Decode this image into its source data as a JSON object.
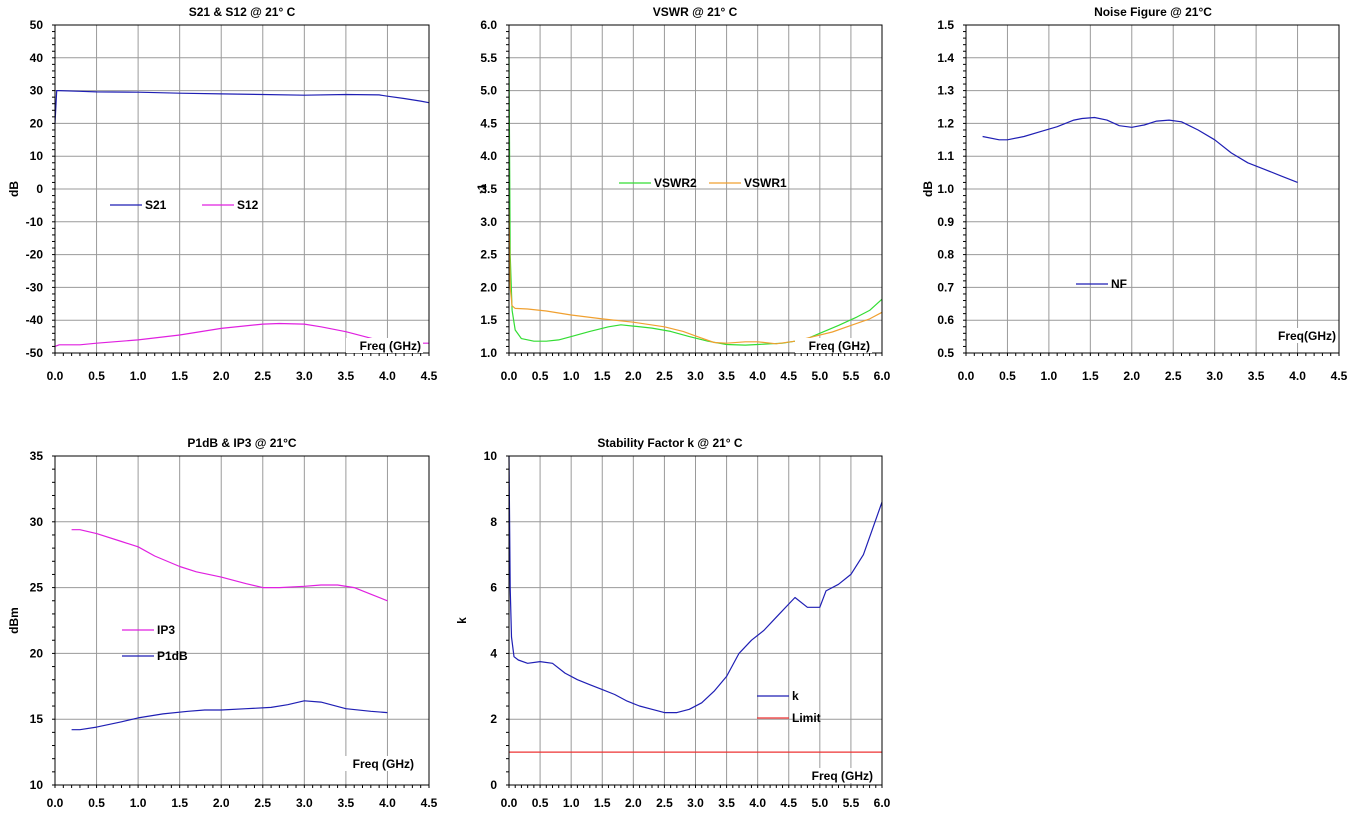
{
  "chart_data": [
    {
      "id": "s21s12",
      "type": "line",
      "title": "S21 & S12 @ 21° C",
      "xlabel": "Freq (GHz)",
      "ylabel": "dB",
      "xlim": [
        0,
        4.5
      ],
      "ylim": [
        -50,
        50
      ],
      "xticks": [
        0,
        0.5,
        1,
        1.5,
        2,
        2.5,
        3,
        3.5,
        4,
        4.5
      ],
      "xtick_labels": [
        "0.0",
        "0.5",
        "1.0",
        "1.5",
        "2.0",
        "2.5",
        "3.0",
        "3.5",
        "4.0",
        "4.5"
      ],
      "yticks": [
        -50,
        -40,
        -30,
        -20,
        -10,
        0,
        10,
        20,
        30,
        40,
        50
      ],
      "ytick_labels": [
        "-50",
        "-40",
        "-30",
        "-20",
        "-10",
        "0",
        "10",
        "20",
        "30",
        "40",
        "50"
      ],
      "grid": true,
      "legend": "middle",
      "series": [
        {
          "name": "S21",
          "color": "#1f1fb4",
          "x": [
            0.0,
            0.02,
            0.05,
            0.3,
            0.5,
            1.0,
            1.5,
            2.0,
            2.5,
            3.0,
            3.5,
            3.9,
            4.0,
            4.2,
            4.4,
            4.5
          ],
          "y": [
            20,
            30,
            30,
            29.8,
            29.6,
            29.5,
            29.2,
            29.0,
            28.8,
            28.6,
            28.8,
            28.7,
            28.3,
            27.6,
            26.8,
            26.3
          ]
        },
        {
          "name": "S12",
          "color": "#e020e0",
          "x": [
            0.0,
            0.05,
            0.3,
            0.5,
            1.0,
            1.5,
            2.0,
            2.5,
            2.7,
            3.0,
            3.2,
            3.5,
            3.8,
            4.0,
            4.3,
            4.5
          ],
          "y": [
            -48,
            -47.5,
            -47.5,
            -47,
            -46,
            -44.5,
            -42.5,
            -41.2,
            -41,
            -41.2,
            -42,
            -43.5,
            -45.5,
            -46.8,
            -47,
            -47
          ]
        }
      ],
      "annotation": "Freq (GHz)"
    },
    {
      "id": "vswr",
      "type": "line",
      "title": "VSWR @ 21° C",
      "xlabel": "Freq (GHz)",
      "ylabel": ":1",
      "xlim": [
        0,
        6
      ],
      "ylim": [
        1,
        6
      ],
      "xticks": [
        0,
        0.5,
        1,
        1.5,
        2,
        2.5,
        3,
        3.5,
        4,
        4.5,
        5,
        5.5,
        6
      ],
      "xtick_labels": [
        "0.0",
        "0.5",
        "1.0",
        "1.5",
        "2.0",
        "2.5",
        "3.0",
        "3.5",
        "4.0",
        "4.5",
        "5.0",
        "5.5",
        "6.0"
      ],
      "yticks": [
        1,
        1.5,
        2,
        2.5,
        3,
        3.5,
        4,
        4.5,
        5,
        5.5,
        6
      ],
      "ytick_labels": [
        "1.0",
        "1.5",
        "2.0",
        "2.5",
        "3.0",
        "3.5",
        "4.0",
        "4.5",
        "5.0",
        "5.5",
        "6.0"
      ],
      "grid": true,
      "legend": "middle-right",
      "series": [
        {
          "name": "VSWR2",
          "color": "#33dd33",
          "x": [
            0.0,
            0.02,
            0.05,
            0.1,
            0.2,
            0.4,
            0.6,
            0.8,
            1.0,
            1.3,
            1.6,
            1.8,
            2.0,
            2.3,
            2.6,
            2.9,
            3.2,
            3.5,
            3.8,
            4.0,
            4.2,
            4.4,
            4.6,
            4.8,
            5.0,
            5.3,
            5.6,
            5.8,
            6.0
          ],
          "y": [
            5.5,
            2.5,
            1.65,
            1.35,
            1.22,
            1.18,
            1.18,
            1.2,
            1.25,
            1.33,
            1.4,
            1.43,
            1.41,
            1.38,
            1.33,
            1.25,
            1.18,
            1.13,
            1.12,
            1.13,
            1.14,
            1.15,
            1.18,
            1.22,
            1.3,
            1.42,
            1.55,
            1.65,
            1.82
          ]
        },
        {
          "name": "VSWR1",
          "color": "#f0a030",
          "x": [
            0.0,
            0.02,
            0.05,
            0.1,
            0.3,
            0.6,
            1.0,
            1.5,
            2.0,
            2.5,
            2.8,
            3.0,
            3.3,
            3.5,
            3.8,
            4.0,
            4.3,
            4.6,
            4.9,
            5.2,
            5.5,
            5.8,
            6.0
          ],
          "y": [
            3.2,
            2.0,
            1.72,
            1.68,
            1.67,
            1.64,
            1.58,
            1.52,
            1.47,
            1.4,
            1.33,
            1.26,
            1.16,
            1.15,
            1.17,
            1.17,
            1.14,
            1.18,
            1.25,
            1.32,
            1.42,
            1.52,
            1.62
          ]
        }
      ],
      "annotation": "Freq (GHz)"
    },
    {
      "id": "nf",
      "type": "line",
      "title": "Noise Figure @ 21°C",
      "xlabel": "Freq(GHz)",
      "ylabel": "dB",
      "xlim": [
        0,
        4.5
      ],
      "ylim": [
        0.5,
        1.5
      ],
      "xticks": [
        0,
        0.5,
        1,
        1.5,
        2,
        2.5,
        3,
        3.5,
        4,
        4.5
      ],
      "xtick_labels": [
        "0.0",
        "0.5",
        "1.0",
        "1.5",
        "2.0",
        "2.5",
        "3.0",
        "3.5",
        "4.0",
        "4.5"
      ],
      "yticks": [
        0.5,
        0.6,
        0.7,
        0.8,
        0.9,
        1.0,
        1.1,
        1.2,
        1.3,
        1.4,
        1.5
      ],
      "ytick_labels": [
        "0.5",
        "0.6",
        "0.7",
        "0.8",
        "0.9",
        "1.0",
        "1.1",
        "1.2",
        "1.3",
        "1.4",
        "1.5"
      ],
      "grid": true,
      "legend": "lower-middle",
      "series": [
        {
          "name": "NF",
          "color": "#1f1fb4",
          "x": [
            0.2,
            0.4,
            0.5,
            0.7,
            0.9,
            1.1,
            1.3,
            1.4,
            1.55,
            1.7,
            1.85,
            2.0,
            2.15,
            2.3,
            2.45,
            2.6,
            2.8,
            3.0,
            3.2,
            3.4,
            3.6,
            3.8,
            4.0
          ],
          "y": [
            1.16,
            1.15,
            1.15,
            1.16,
            1.175,
            1.19,
            1.21,
            1.215,
            1.218,
            1.21,
            1.193,
            1.188,
            1.195,
            1.207,
            1.21,
            1.205,
            1.18,
            1.15,
            1.11,
            1.08,
            1.06,
            1.04,
            1.02
          ]
        }
      ],
      "annotation": "Freq(GHz)"
    },
    {
      "id": "p1dbip3",
      "type": "line",
      "title": "P1dB & IP3 @ 21°C",
      "xlabel": "Freq (GHz)",
      "ylabel": "dBm",
      "xlim": [
        0,
        4.5
      ],
      "ylim": [
        10,
        35
      ],
      "xticks": [
        0,
        0.5,
        1,
        1.5,
        2,
        2.5,
        3,
        3.5,
        4,
        4.5
      ],
      "xtick_labels": [
        "0.0",
        "0.5",
        "1.0",
        "1.5",
        "2.0",
        "2.5",
        "3.0",
        "3.5",
        "4.0",
        "4.5"
      ],
      "yticks": [
        10,
        15,
        20,
        25,
        30,
        35
      ],
      "ytick_labels": [
        "10",
        "15",
        "20",
        "25",
        "30",
        "35"
      ],
      "grid": true,
      "legend": "middle-left",
      "series": [
        {
          "name": "IP3",
          "color": "#e020e0",
          "x": [
            0.2,
            0.3,
            0.5,
            0.8,
            1.0,
            1.2,
            1.5,
            1.7,
            2.0,
            2.3,
            2.5,
            2.7,
            3.0,
            3.2,
            3.4,
            3.6,
            3.8,
            4.0
          ],
          "y": [
            29.4,
            29.4,
            29.1,
            28.5,
            28.1,
            27.4,
            26.6,
            26.2,
            25.8,
            25.3,
            25.0,
            25.0,
            25.1,
            25.2,
            25.2,
            25.0,
            24.5,
            24.0
          ]
        },
        {
          "name": "P1dB",
          "color": "#1f1fb4",
          "x": [
            0.2,
            0.3,
            0.5,
            0.8,
            1.0,
            1.3,
            1.6,
            1.8,
            2.0,
            2.3,
            2.6,
            2.8,
            3.0,
            3.2,
            3.5,
            3.8,
            4.0
          ],
          "y": [
            14.2,
            14.2,
            14.4,
            14.8,
            15.1,
            15.4,
            15.6,
            15.7,
            15.7,
            15.8,
            15.9,
            16.1,
            16.4,
            16.3,
            15.8,
            15.6,
            15.5
          ]
        }
      ],
      "annotation": "Freq (GHz)"
    },
    {
      "id": "kfactor",
      "type": "line",
      "title": "Stability Factor k @ 21° C",
      "xlabel": "Freq (GHz)",
      "ylabel": "k",
      "xlim": [
        0,
        6
      ],
      "ylim": [
        0,
        10
      ],
      "xticks": [
        0,
        0.5,
        1,
        1.5,
        2,
        2.5,
        3,
        3.5,
        4,
        4.5,
        5,
        5.5,
        6
      ],
      "xtick_labels": [
        "0.0",
        "0.5",
        "1.0",
        "1.5",
        "2.0",
        "2.5",
        "3.0",
        "3.5",
        "4.0",
        "4.5",
        "5.0",
        "5.5",
        "6.0"
      ],
      "yticks": [
        0,
        2,
        4,
        6,
        8,
        10
      ],
      "ytick_labels": [
        "0",
        "2",
        "4",
        "6",
        "8",
        "10"
      ],
      "grid": true,
      "legend": "lower-right",
      "series": [
        {
          "name": "k",
          "color": "#1f1fb4",
          "x": [
            0.0,
            0.02,
            0.04,
            0.08,
            0.15,
            0.3,
            0.5,
            0.7,
            0.9,
            1.1,
            1.3,
            1.5,
            1.7,
            1.9,
            2.1,
            2.3,
            2.5,
            2.7,
            2.9,
            3.1,
            3.3,
            3.5,
            3.7,
            3.9,
            4.1,
            4.3,
            4.5,
            4.6,
            4.8,
            5.0,
            5.1,
            5.3,
            5.5,
            5.7,
            5.85,
            6.0
          ],
          "y": [
            10,
            6,
            4.5,
            3.9,
            3.8,
            3.7,
            3.75,
            3.7,
            3.4,
            3.2,
            3.05,
            2.9,
            2.75,
            2.55,
            2.4,
            2.3,
            2.2,
            2.2,
            2.3,
            2.5,
            2.85,
            3.3,
            4.0,
            4.4,
            4.7,
            5.1,
            5.5,
            5.7,
            5.4,
            5.4,
            5.9,
            6.1,
            6.4,
            7.0,
            7.8,
            8.6
          ]
        },
        {
          "name": "Limit",
          "color": "#ee3333",
          "x": [
            0,
            6
          ],
          "y": [
            1,
            1
          ]
        }
      ],
      "annotation": "Freq (GHz)"
    }
  ]
}
